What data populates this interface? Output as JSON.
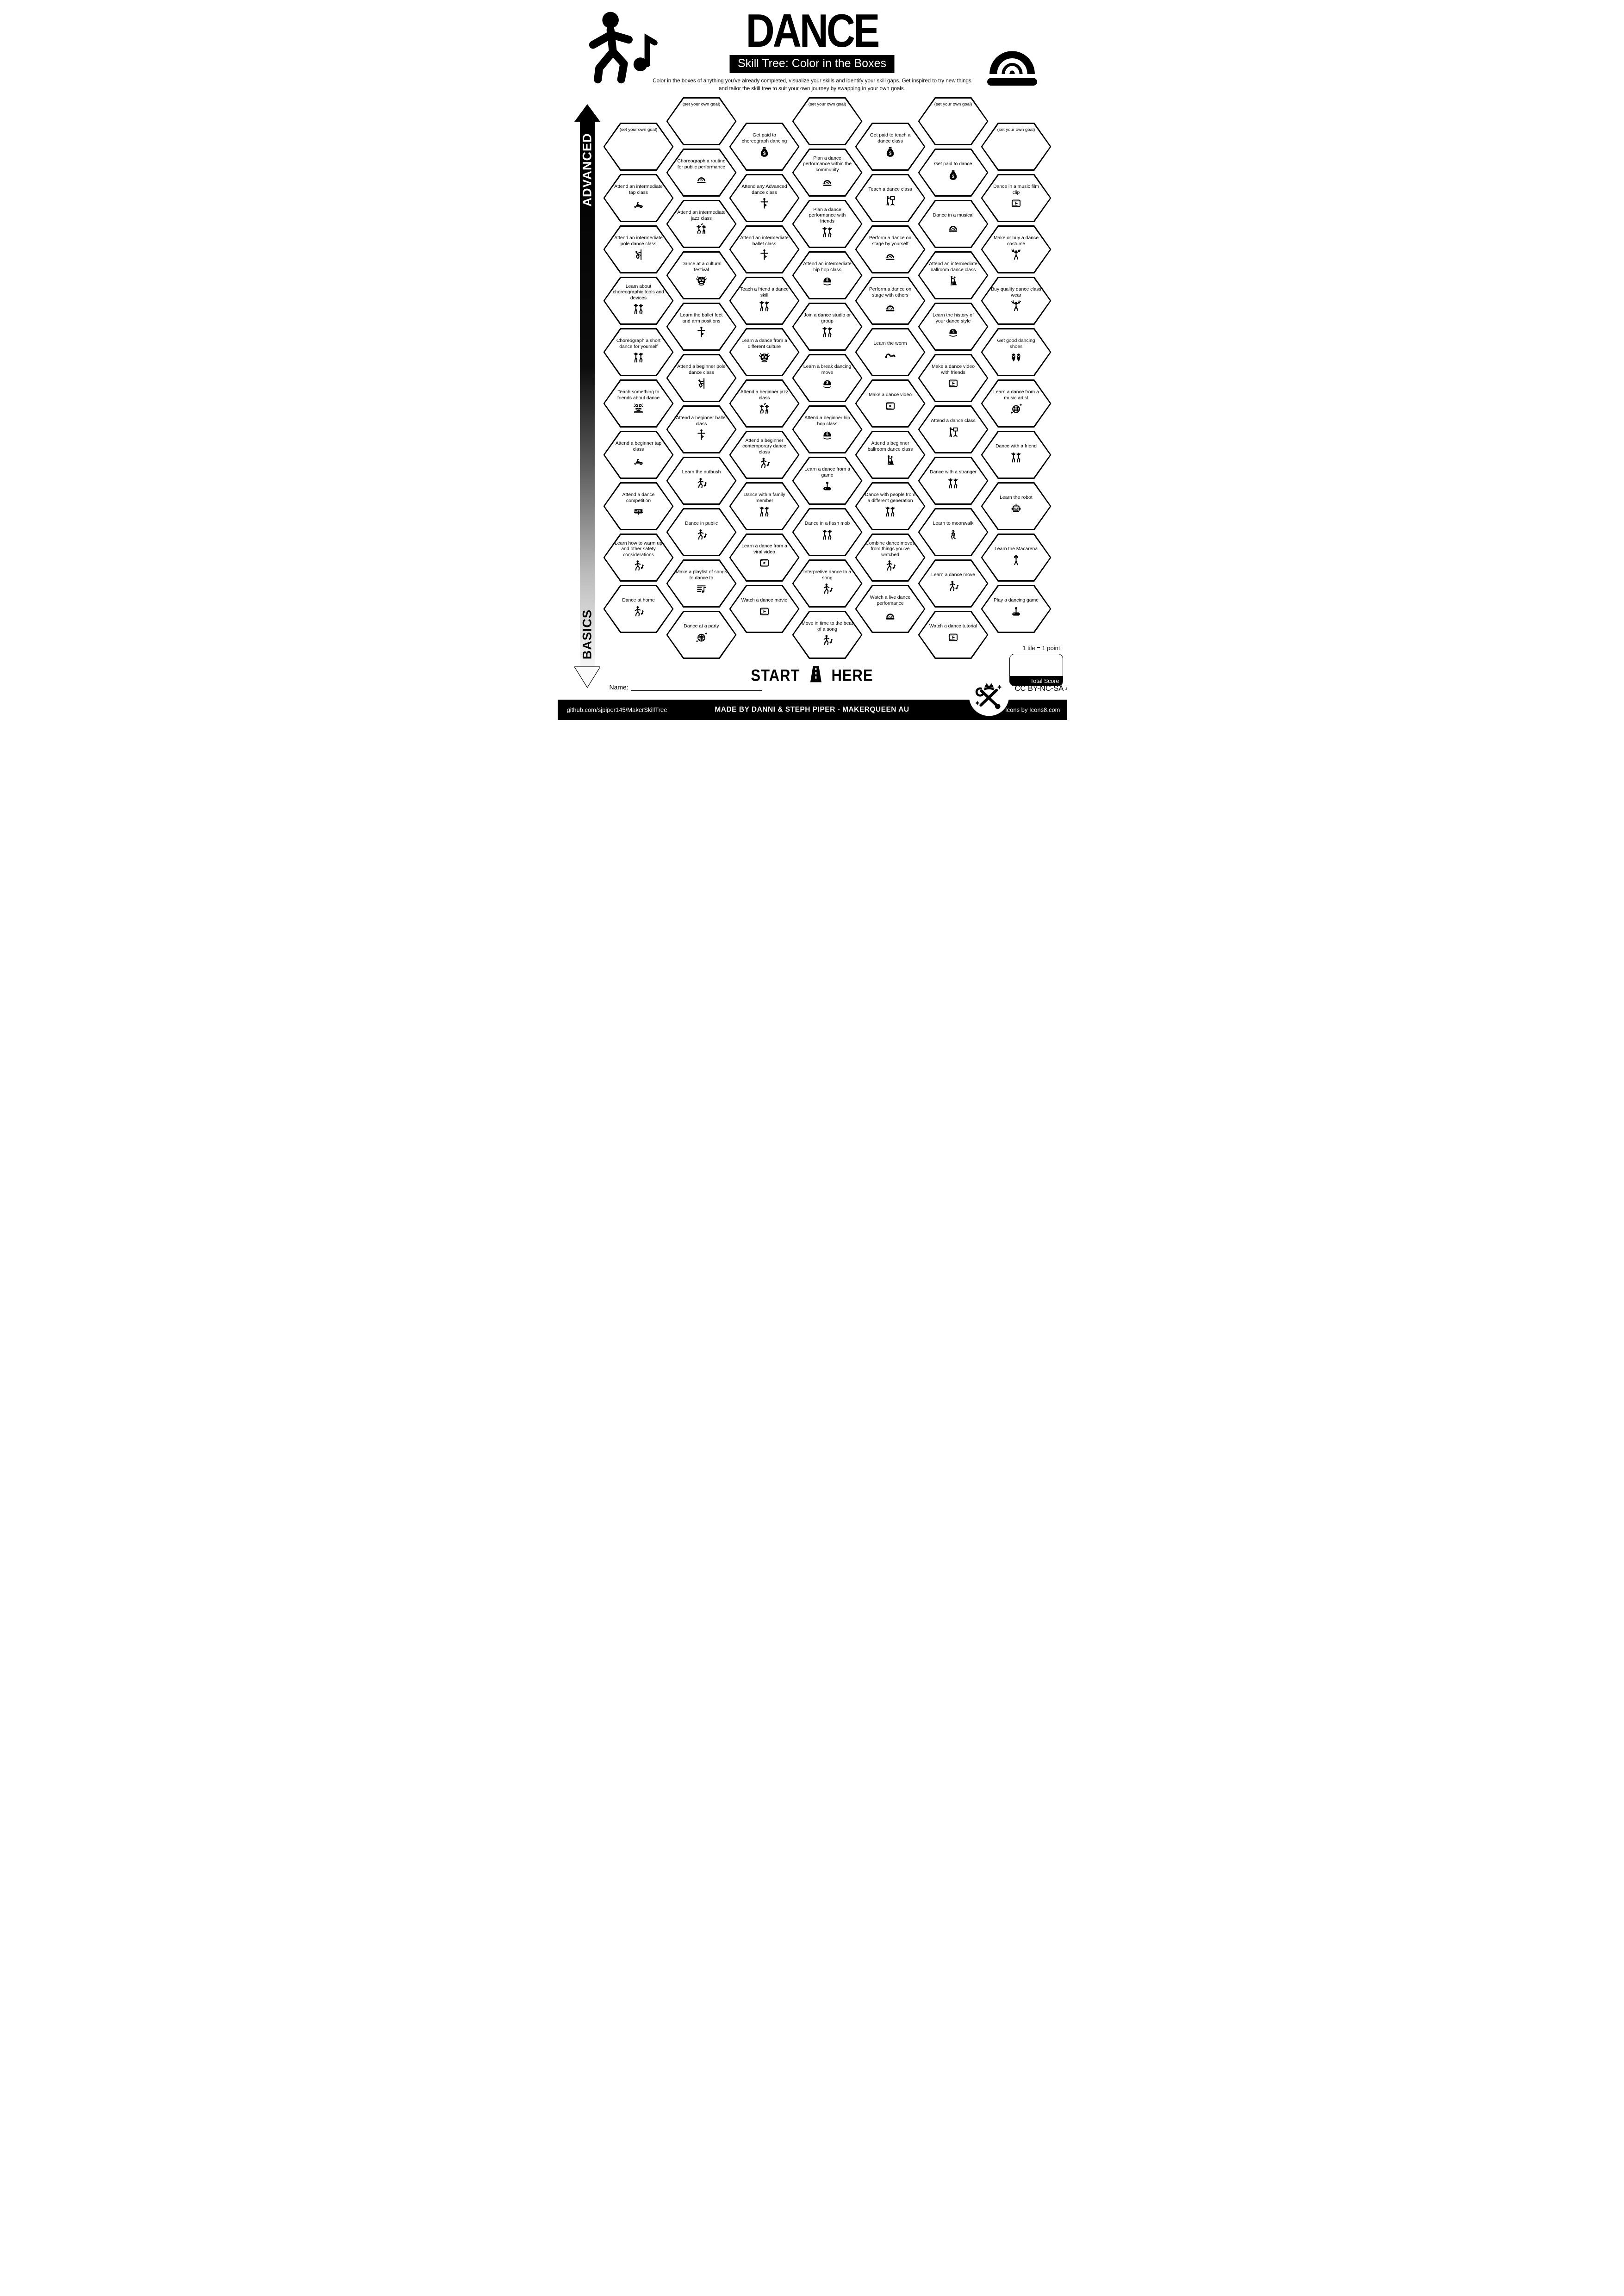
{
  "header": {
    "title": "DANCE",
    "subtitle": "Skill Tree: Color in the Boxes",
    "description": "Color in the boxes of anything you've already completed, visualize your skills and identify your skill gaps.  Get inspired to try new things and tailor the skill tree to suit your own journey by swapping in your own goals."
  },
  "axis": {
    "top": "ADVANCED",
    "bottom": "BASICS"
  },
  "start": {
    "left": "START",
    "right": "HERE"
  },
  "scoring": {
    "note": "1 tile = 1 point",
    "total_label": "Total Score"
  },
  "name_label": "Name:",
  "license": "CC BY-NC-SA 4.0",
  "footer": {
    "left": "github.com/sjpiper145/MakerSkillTree",
    "center": "MADE BY DANNI & STEPH PIPER  -  MAKERQUEEN AU",
    "right": "Icons by Icons8.com"
  },
  "icon_text": {
    "money": "$",
    "battle": "BATTLE"
  },
  "colors": {
    "ink": "#000000",
    "paper": "#ffffff"
  },
  "columns": [
    {
      "tiles": [
        {
          "label": "(set your own goal)",
          "icon": "none",
          "goal": true
        },
        {
          "label": "Attend an intermediate tap class",
          "icon": "tap-shoe"
        },
        {
          "label": "Attend an intermediate pole dance class",
          "icon": "pole"
        },
        {
          "label": "Learn about choreographic tools and devices",
          "icon": "dancers"
        },
        {
          "label": "Choreograph a short dance for yourself",
          "icon": "dancers"
        },
        {
          "label": "Teach something to friends about dance",
          "icon": "laptop"
        },
        {
          "label": "Attend a beginner tap class",
          "icon": "tap-shoe"
        },
        {
          "label": "Attend a dance competition",
          "icon": "battle"
        },
        {
          "label": "Learn how to warm up and other safety considerations",
          "icon": "dancer"
        },
        {
          "label": "Dance at home",
          "icon": "dancer"
        }
      ]
    },
    {
      "tiles": [
        {
          "label": "(set your own goal)",
          "icon": "none",
          "goal": true
        },
        {
          "label": "Choreograph a routine for public performance",
          "icon": "stage"
        },
        {
          "label": "Attend an intermediate jazz class",
          "icon": "jazz"
        },
        {
          "label": "Dance at a cultural festival",
          "icon": "lion"
        },
        {
          "label": "Learn the ballet feet and arm positions",
          "icon": "ballet"
        },
        {
          "label": "Attend a beginner pole dance class",
          "icon": "pole"
        },
        {
          "label": "Attend a beginner ballet class",
          "icon": "ballet"
        },
        {
          "label": "Learn the nutbush",
          "icon": "dancer"
        },
        {
          "label": "Dance in public",
          "icon": "dancer"
        },
        {
          "label": "Make a playlist of songs to dance to",
          "icon": "playlist"
        },
        {
          "label": "Dance at a party",
          "icon": "disco"
        }
      ]
    },
    {
      "tiles": [
        {
          "label": "Get paid to choreograph dancing",
          "icon": "money-bag"
        },
        {
          "label": "Attend any Advanced dance class",
          "icon": "ballet"
        },
        {
          "label": "Attend an intermediate ballet class",
          "icon": "ballet"
        },
        {
          "label": "Teach a friend a dance skill",
          "icon": "dancers"
        },
        {
          "label": "Learn a dance from a different culture",
          "icon": "lion"
        },
        {
          "label": "Attend a beginner jazz class",
          "icon": "jazz"
        },
        {
          "label": "Attend a beginner contemporary dance class",
          "icon": "dancer"
        },
        {
          "label": "Dance with a family member",
          "icon": "dancers"
        },
        {
          "label": "Learn a dance from a viral video",
          "icon": "film"
        },
        {
          "label": "Watch a dance movie",
          "icon": "film"
        }
      ]
    },
    {
      "tiles": [
        {
          "label": "(set your own goal)",
          "icon": "none",
          "goal": true
        },
        {
          "label": "Plan a dance performance within the community",
          "icon": "stage"
        },
        {
          "label": "Plan a dance performance with friends",
          "icon": "dancers"
        },
        {
          "label": "Attend an intermediate hip hop class",
          "icon": "cap"
        },
        {
          "label": "Join a dance studio or group",
          "icon": "dancers"
        },
        {
          "label": "Learn a break dancing move",
          "icon": "cap"
        },
        {
          "label": "Attend a beginner hip hop class",
          "icon": "cap"
        },
        {
          "label": "Learn a dance from a game",
          "icon": "joystick"
        },
        {
          "label": "Dance in a flash mob",
          "icon": "dancers"
        },
        {
          "label": "Interpretive dance to a song",
          "icon": "dancer"
        },
        {
          "label": "Move in time to the beat of a song",
          "icon": "dancer"
        }
      ]
    },
    {
      "tiles": [
        {
          "label": "Get paid to teach a dance class",
          "icon": "money-bag"
        },
        {
          "label": "Teach a dance class",
          "icon": "teach"
        },
        {
          "label": "Perform a dance on stage by yourself",
          "icon": "stage"
        },
        {
          "label": "Perform a dance on stage with others",
          "icon": "stage"
        },
        {
          "label": "Learn the worm",
          "icon": "worm"
        },
        {
          "label": "Make a dance video",
          "icon": "film"
        },
        {
          "label": "Attend a beginner ballroom dance class",
          "icon": "ballroom"
        },
        {
          "label": "Dance with people from a different generation",
          "icon": "dancers"
        },
        {
          "label": "Combine dance moves from things you've watched",
          "icon": "dancer"
        },
        {
          "label": "Watch a live dance performance",
          "icon": "stage"
        }
      ]
    },
    {
      "tiles": [
        {
          "label": "(set your own goal)",
          "icon": "none",
          "goal": true
        },
        {
          "label": "Get paid to dance",
          "icon": "money-bag"
        },
        {
          "label": "Dance in a musical",
          "icon": "stage"
        },
        {
          "label": "Attend an intermediate ballroom dance class",
          "icon": "ballroom"
        },
        {
          "label": "Learn the history of your dance style",
          "icon": "cap"
        },
        {
          "label": "Make a dance video with friends",
          "icon": "film"
        },
        {
          "label": "Attend a dance class",
          "icon": "teach"
        },
        {
          "label": "Dance with a stranger",
          "icon": "dancers"
        },
        {
          "label": "Learn to moonwalk",
          "icon": "moonwalk"
        },
        {
          "label": "Learn a dance move",
          "icon": "dancer"
        },
        {
          "label": "Watch a dance tutorial",
          "icon": "film"
        }
      ]
    },
    {
      "tiles": [
        {
          "label": "(set your own goal)",
          "icon": "none",
          "goal": true
        },
        {
          "label": "Dance in a music film clip",
          "icon": "film"
        },
        {
          "label": "Make or buy a dance costume",
          "icon": "cheer"
        },
        {
          "label": "Buy quality dance class wear",
          "icon": "cheer"
        },
        {
          "label": "Get good dancing shoes",
          "icon": "shoes"
        },
        {
          "label": "Learn a dance from a music artist",
          "icon": "disco"
        },
        {
          "label": "Dance with a friend",
          "icon": "dancers"
        },
        {
          "label": "Learn the robot",
          "icon": "robot"
        },
        {
          "label": "Learn the Macarena",
          "icon": "macarena"
        },
        {
          "label": "Play a dancing game",
          "icon": "joystick"
        }
      ]
    }
  ]
}
